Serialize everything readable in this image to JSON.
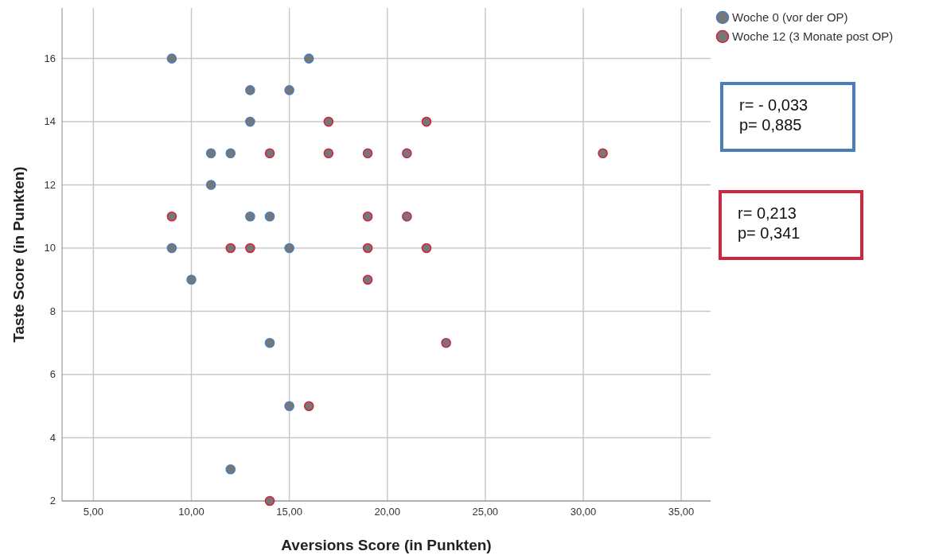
{
  "chart_data": {
    "type": "scatter",
    "xlabel": "Aversions Score (in Punkten)",
    "ylabel": "Taste Score (in Punkten)",
    "xlim": [
      3.4,
      36.5
    ],
    "ylim": [
      2,
      17.6
    ],
    "xticks": [
      {
        "value": 5,
        "label": "5,00"
      },
      {
        "value": 10,
        "label": "10,00"
      },
      {
        "value": 15,
        "label": "15,00"
      },
      {
        "value": 20,
        "label": "20,00"
      },
      {
        "value": 25,
        "label": "25,00"
      },
      {
        "value": 30,
        "label": "30,00"
      },
      {
        "value": 35,
        "label": "35,00"
      }
    ],
    "yticks": [
      2,
      4,
      6,
      8,
      10,
      12,
      14,
      16
    ],
    "grid": true,
    "legend": "top right",
    "marker": "circle",
    "series": [
      {
        "name": "Woche 0 (vor der OP)",
        "color": "#4a7ebb",
        "x": [
          9,
          16,
          13,
          15,
          13,
          11,
          12,
          11,
          13,
          14,
          9,
          15,
          10,
          14,
          15,
          12
        ],
        "values": [
          16,
          16,
          15,
          15,
          14,
          13,
          13,
          12,
          11,
          11,
          10,
          10,
          9,
          7,
          5,
          3
        ]
      },
      {
        "name": "Woche 12 (3 Monate post OP)",
        "color": "#d0263f",
        "x": [
          17,
          22,
          14,
          17,
          19,
          21,
          31,
          9,
          19,
          21,
          12,
          13,
          19,
          22,
          19,
          23,
          16,
          14
        ],
        "values": [
          14,
          14,
          13,
          13,
          13,
          13,
          13,
          11,
          11,
          11,
          10,
          10,
          10,
          10,
          9,
          7,
          5,
          2
        ]
      }
    ],
    "annotations": [
      "r= - 0,033",
      "p= 0,885",
      "r= 0,213",
      "p= 0,341"
    ]
  }
}
